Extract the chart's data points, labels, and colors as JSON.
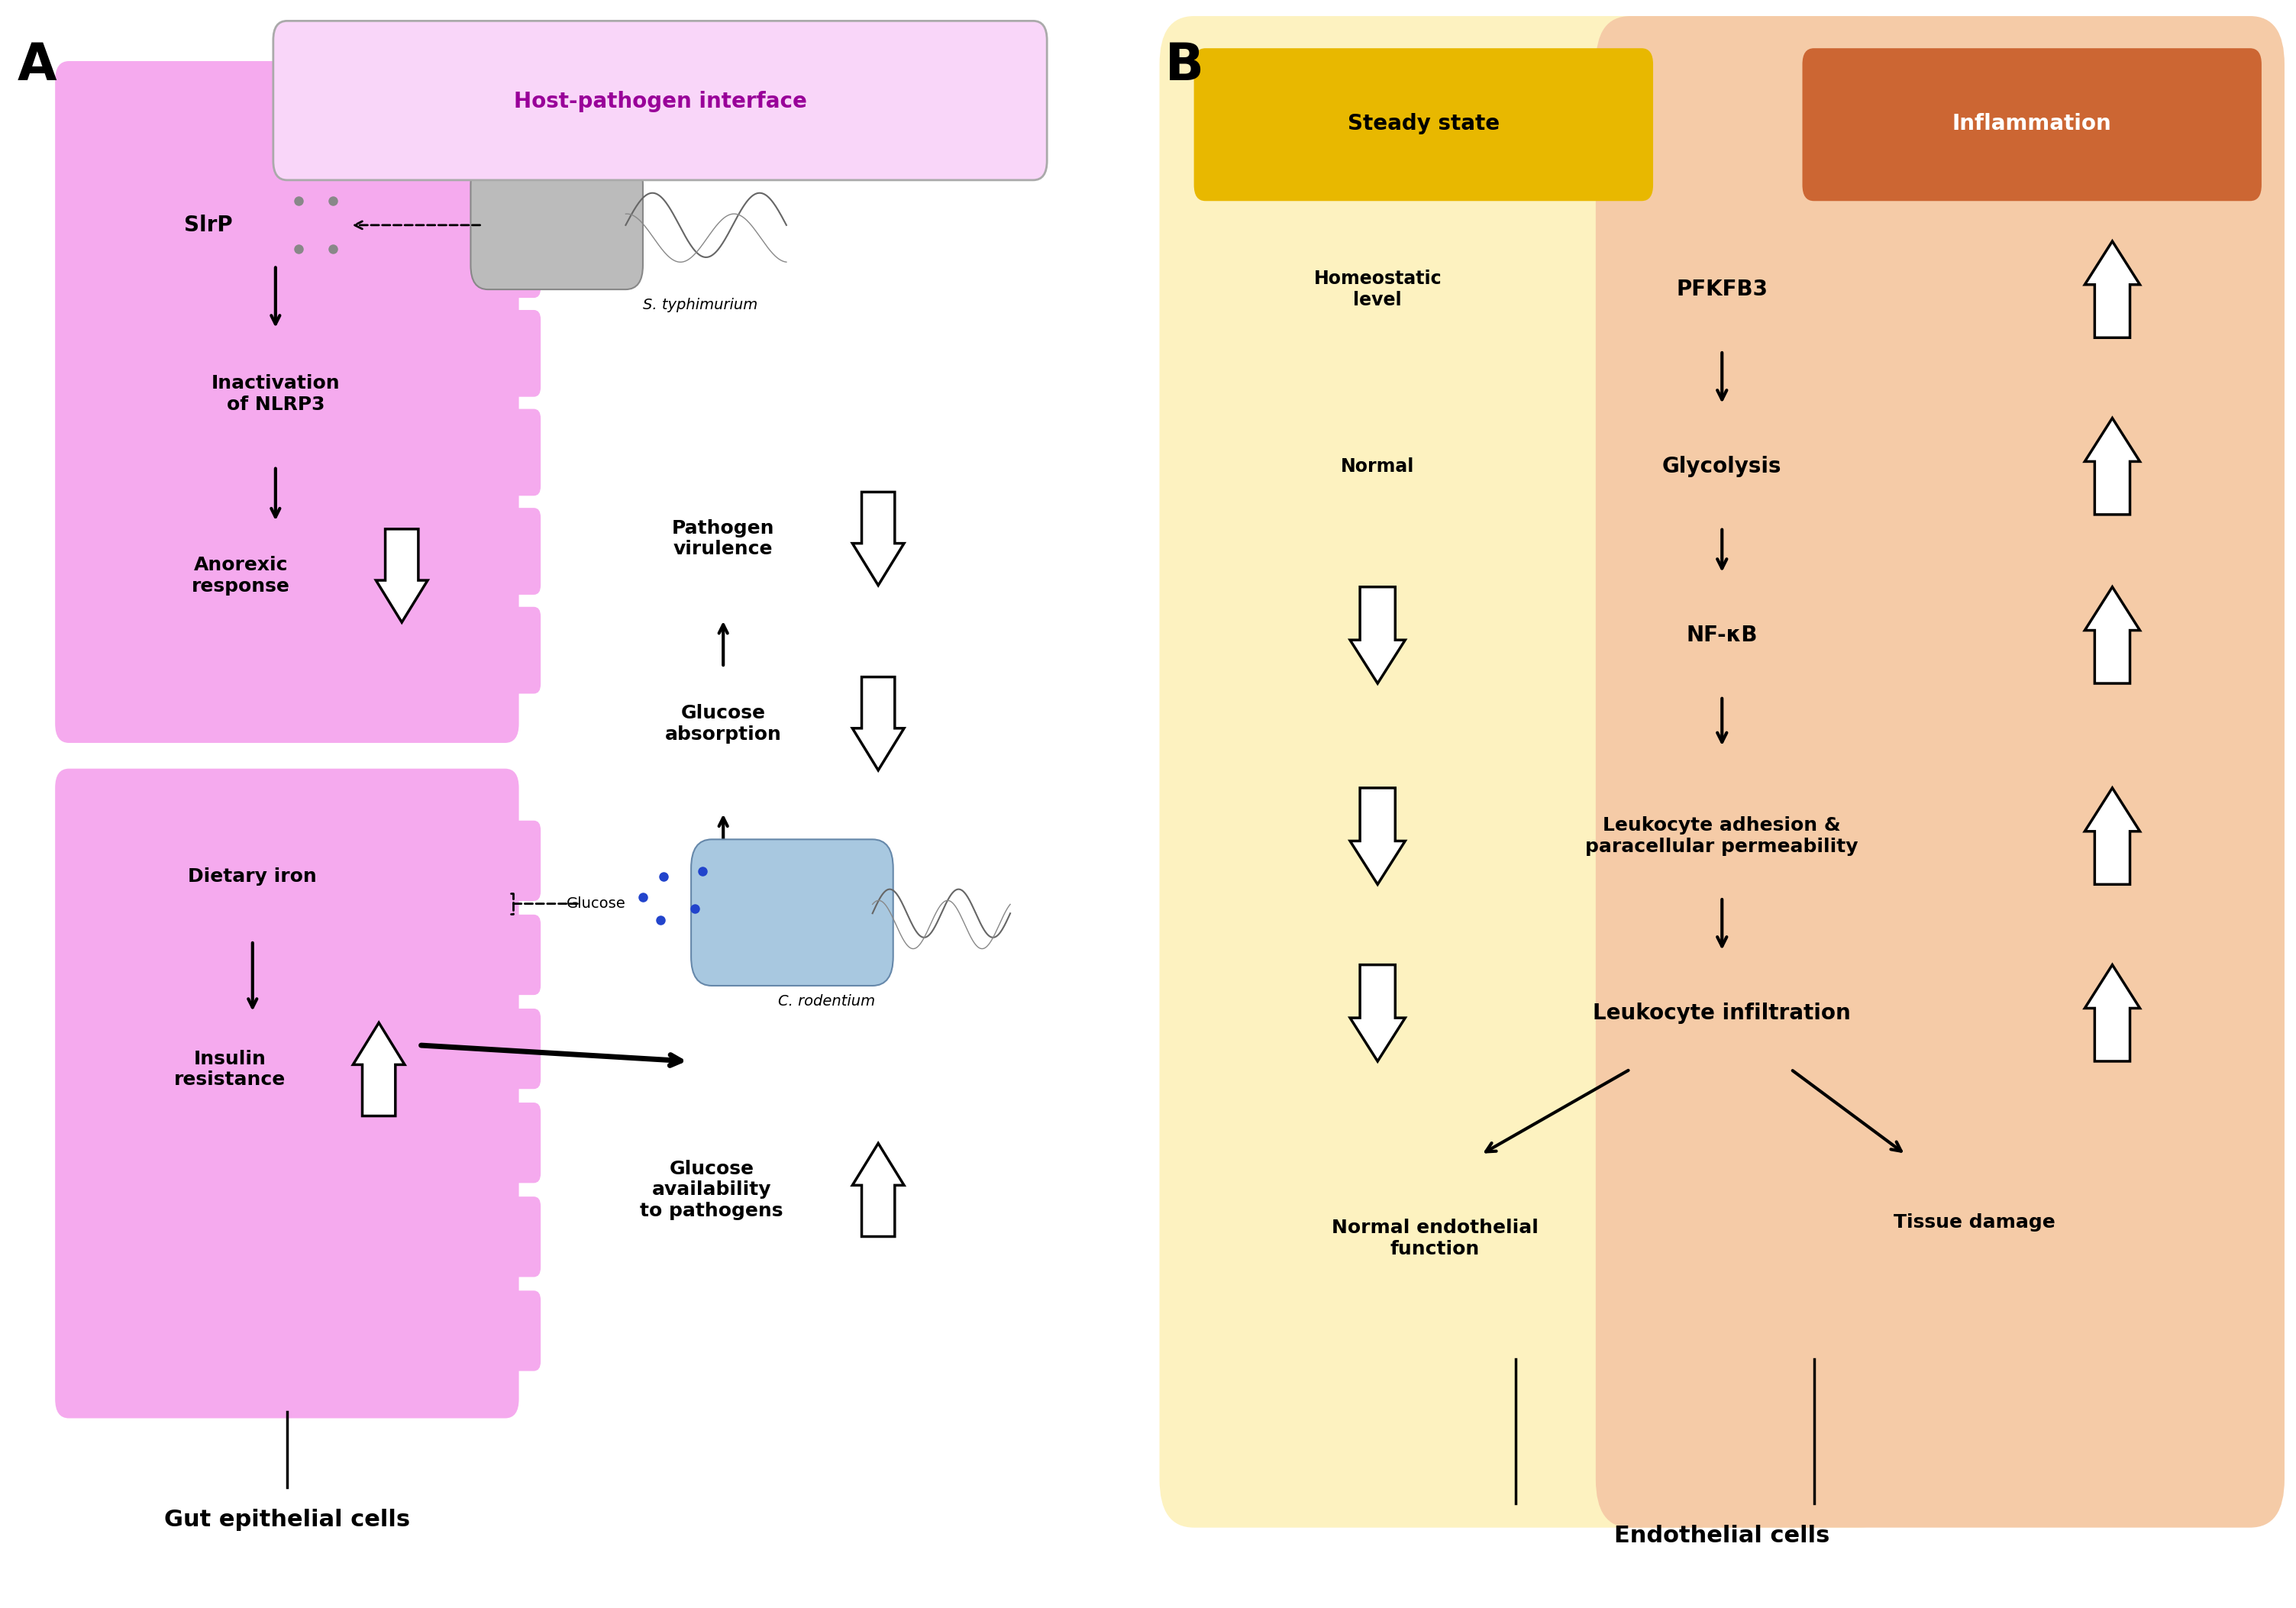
{
  "fig_width": 30.07,
  "fig_height": 21.06,
  "bg_color": "#ffffff",
  "panel_A": {
    "label": "A",
    "title_box_text": "Host-pathogen interface",
    "title_box_color": "#f9d6f9",
    "title_box_edge": "#999999",
    "gut_cell_color": "#f5aaee",
    "gut_cell_label": "Gut epithelial cells",
    "s_typh_label": "S. typhimurium",
    "c_rod_label": "C. rodentium",
    "glucose_label": "Glucose"
  },
  "panel_B": {
    "label": "B",
    "steady_state_label": "Steady state",
    "inflammation_label": "Inflammation",
    "steady_color": "#fdf2c0",
    "inflam_color": "#f5cba7",
    "steady_box_color": "#e8b800",
    "inflam_box_color": "#cc6633",
    "center_labels": [
      "PFKFB3",
      "Glycolysis",
      "NF-κB",
      "Leukocyte adhesion &\nparacellular permeability",
      "Leukocyte infiltration"
    ],
    "left_labels": [
      "Homeostatic\nlevel",
      "Normal"
    ],
    "endothelial_label": "Endothelial cells",
    "normal_endo_label": "Normal endothelial\nfunction",
    "tissue_damage_label": "Tissue damage"
  }
}
